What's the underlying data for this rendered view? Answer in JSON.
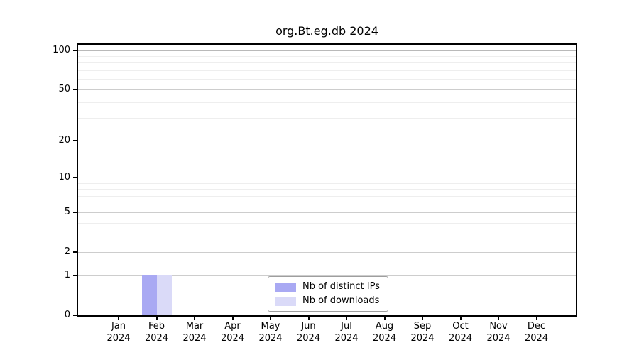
{
  "chart_data": {
    "type": "bar",
    "title": "org.Bt.eg.db 2024",
    "categories": [
      "Jan",
      "Feb",
      "Mar",
      "Apr",
      "May",
      "Jun",
      "Jul",
      "Aug",
      "Sep",
      "Oct",
      "Nov",
      "Dec"
    ],
    "x_tick_year": "2024",
    "series": [
      {
        "name": "Nb of distinct IPs",
        "color": "#a9a9f3",
        "values": [
          0,
          1,
          0,
          0,
          0,
          0,
          0,
          0,
          0,
          0,
          0,
          0
        ]
      },
      {
        "name": "Nb of downloads",
        "color": "#dadaf8",
        "values": [
          0,
          1,
          0,
          0,
          0,
          0,
          0,
          0,
          0,
          0,
          0,
          0
        ]
      }
    ],
    "y_axis": {
      "scale": "log10(1+y)",
      "major_ticks": [
        0,
        1,
        2,
        5,
        10,
        20,
        50,
        100
      ],
      "minor_gridlines": [
        3,
        4,
        6,
        7,
        8,
        9,
        30,
        40,
        60,
        70,
        80,
        90
      ],
      "ylim": [
        0,
        110
      ]
    },
    "legend": {
      "position": "bottom-center",
      "entries": [
        "Nb of distinct IPs",
        "Nb of downloads"
      ]
    },
    "grid": true,
    "colors": {
      "major_grid": "#cdcdcd",
      "minor_grid": "#eeeeee",
      "top_grid": "#b9b9b9",
      "axis": "#000000",
      "background": "#ffffff"
    }
  }
}
